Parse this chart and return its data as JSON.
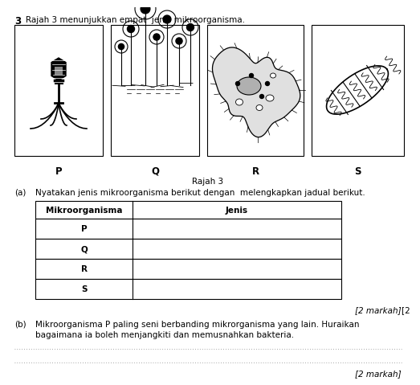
{
  "question_number": "3",
  "question_text": "Rajah 3 menunjukkan empat  jenis mikroorganisma.",
  "figure_label": "Rajah 3",
  "labels": [
    "P",
    "Q",
    "R",
    "S"
  ],
  "part_a_prefix": "(a)",
  "part_a_text": "Nyatakan jenis mikroorganisma berikut dengan  melengkapkan jadual berikut.",
  "part_a_marks": "[2 markah]",
  "table_headers": [
    "Mikroorganisma",
    "Jenis"
  ],
  "table_rows": [
    "P",
    "Q",
    "R",
    "S"
  ],
  "part_b_prefix": "(b)",
  "part_b_line1": "Mikroorganisma P paling seni berbanding mikrorganisma yang lain. Huraikan",
  "part_b_line2": "bagaimana ia boleh menjangkiti dan memusnahkan bakteria.",
  "part_b_marks": "[2 markah]",
  "bg_color": "#ffffff",
  "text_color": "#000000",
  "font_size_main": 7.5,
  "font_size_label": 8.5,
  "font_size_marks": 7.5
}
